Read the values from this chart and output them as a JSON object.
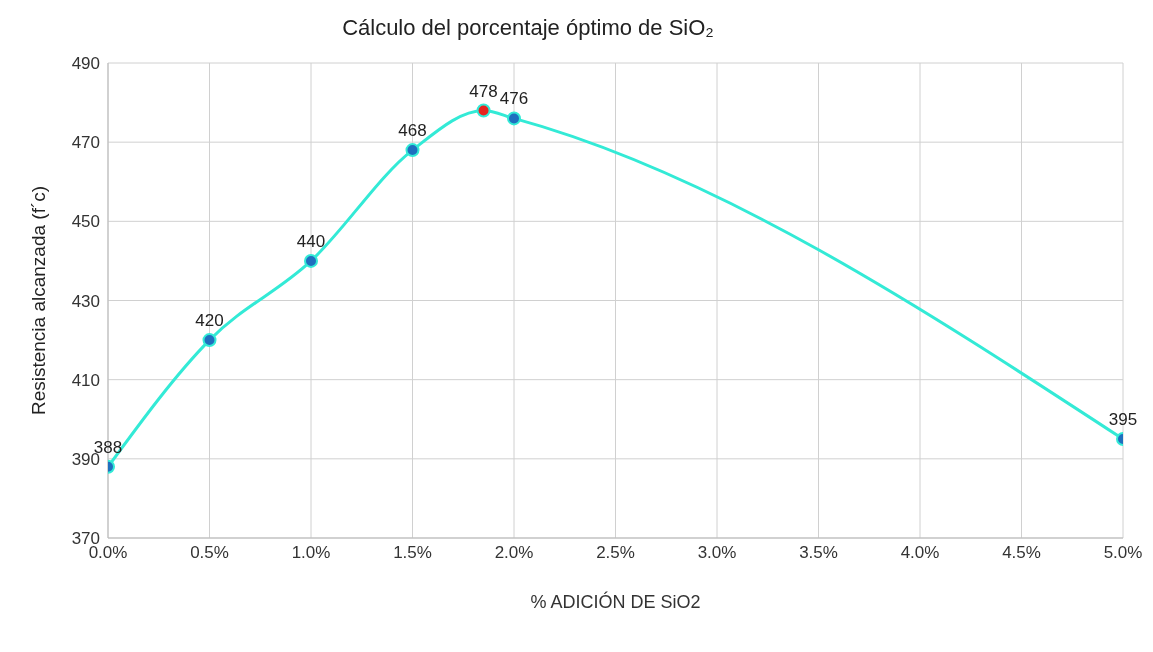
{
  "chart_data": {
    "type": "line",
    "title": "Cálculo del porcentaje óptimo de SiO₂",
    "xlabel": "% ADICIÓN DE SiO2",
    "ylabel": "Resistencia alcanzada (f´c)",
    "x": [
      0,
      0.5,
      1,
      1.5,
      1.85,
      2,
      5
    ],
    "series": [
      {
        "color": "#33ead6",
        "colors": [
          "#1f6fbf",
          "#1f6fbf",
          "#1f6fbf",
          "#1f6fbf",
          "#e8231e",
          "#1f6fbf",
          "#1f6fbf"
        ],
        "values": [
          388,
          420,
          440,
          468,
          478,
          476,
          395
        ]
      }
    ],
    "xlim": [
      0,
      5
    ],
    "xticks": [
      {
        "value": 0,
        "label": "0.0%"
      },
      {
        "value": 0.5,
        "label": "0.5%"
      },
      {
        "value": 1,
        "label": "1.0%"
      },
      {
        "value": 1.5,
        "label": "1.5%"
      },
      {
        "value": 2,
        "label": "2.0%"
      },
      {
        "value": 2.5,
        "label": "2.5%"
      },
      {
        "value": 3,
        "label": "3.0%"
      },
      {
        "value": 3.5,
        "label": "3.5%"
      },
      {
        "value": 4,
        "label": "4.0%"
      },
      {
        "value": 4.5,
        "label": "4.5%"
      },
      {
        "value": 5,
        "label": "5.0%"
      }
    ],
    "ylim": [
      370,
      490
    ],
    "yticks": [
      370,
      390,
      410,
      430,
      450,
      470,
      490
    ],
    "grid": true,
    "marker": "circle",
    "line_style": "solid",
    "data_labels": true
  }
}
